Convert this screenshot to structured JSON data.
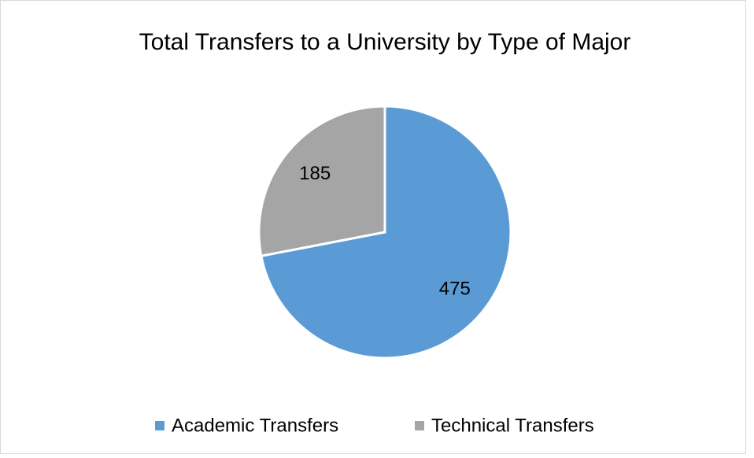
{
  "chart_data": {
    "type": "pie",
    "title": "Total Transfers to a University by Type of Major",
    "categories": [
      "Academic Transfers",
      "Technical Transfers"
    ],
    "values": [
      475,
      185
    ],
    "colors": [
      "#5b9bd5",
      "#a5a5a5"
    ],
    "legend": "bottom"
  }
}
